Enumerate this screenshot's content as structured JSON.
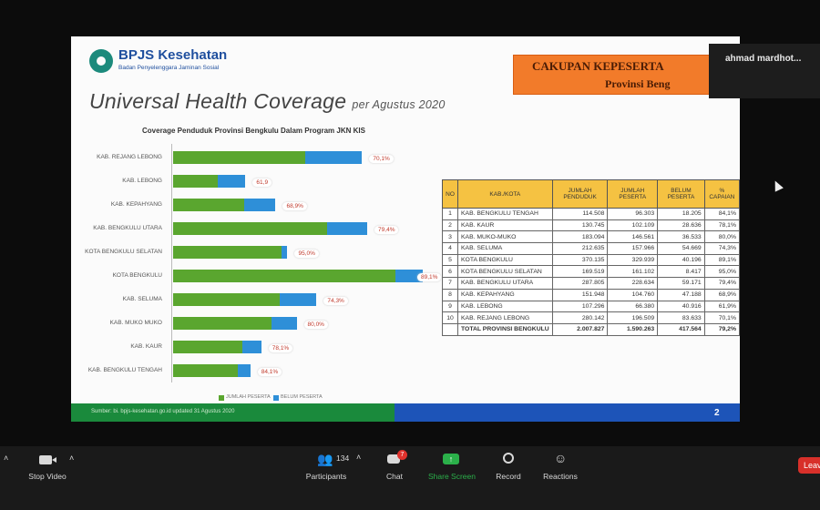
{
  "slide": {
    "logo_name": "BPJS Kesehatan",
    "logo_sub": "Badan Penyelenggara Jaminan Sosial",
    "title": "Universal Health Coverage",
    "title_sub": "per Agustus 2020",
    "chart_title": "Coverage Penduduk Provinsi Bengkulu  Dalam Program JKN KIS",
    "banner_title": "CAKUPAN KEPESERTA",
    "banner_sub": "Provinsi Beng",
    "footer_text": "Sumber: bi. bpjs-kesehatan.go.id updated 31 Agustus 2020",
    "page_number": "2"
  },
  "chart_data": {
    "type": "bar",
    "orientation": "horizontal",
    "title": "Coverage Penduduk Provinsi Bengkulu  Dalam Program JKN KIS",
    "categories": [
      "KAB. REJANG LEBONG",
      "KAB. LEBONG",
      "KAB. KEPAHYANG",
      "KAB. BENGKULU UTARA",
      "KOTA BENGKULU SELATAN",
      "KOTA BENGKULU",
      "KAB. SELUMA",
      "KAB. MUKO MUKO",
      "KAB. KAUR",
      "KAB. BENGKULU TENGAH"
    ],
    "labels": [
      "70,1%",
      "61,9",
      "68,9%",
      "79,4%",
      "95,0%",
      "89,1%",
      "74,3%",
      "80,0%",
      "78,1%",
      "84,1%"
    ],
    "series": [
      {
        "name": "JUMLAH PESERTA",
        "color": "#5aa62f",
        "values": [
          196509,
          66380,
          104760,
          228634,
          161102,
          329939,
          157966,
          146561,
          102109,
          96303
        ]
      },
      {
        "name": "BELUM PESERTA",
        "color": "#2e8fd8",
        "values": [
          83633,
          40916,
          47188,
          59171,
          8417,
          40196,
          54669,
          36533,
          28636,
          18205
        ]
      }
    ],
    "legend_position": "bottom-right"
  },
  "table": {
    "headers": [
      "NO",
      "KAB./KOTA",
      "JUMLAH PENDUDUK",
      "JUMLAH PESERTA",
      "BELUM PESERTA",
      "% CAPAIAN"
    ],
    "rows": [
      [
        "1",
        "KAB. BENGKULU TENGAH",
        "114.508",
        "96.303",
        "18.205",
        "84,1%"
      ],
      [
        "2",
        "KAB. KAUR",
        "130.745",
        "102.109",
        "28.636",
        "78,1%"
      ],
      [
        "3",
        "KAB. MUKO-MUKO",
        "183.094",
        "146.561",
        "36.533",
        "80,0%"
      ],
      [
        "4",
        "KAB. SELUMA",
        "212.635",
        "157.966",
        "54.669",
        "74,3%"
      ],
      [
        "5",
        "KOTA BENGKULU",
        "370.135",
        "329.939",
        "40.196",
        "89,1%"
      ],
      [
        "6",
        "KOTA BENGKULU SELATAN",
        "169.519",
        "161.102",
        "8.417",
        "95,0%"
      ],
      [
        "7",
        "KAB. BENGKULU UTARA",
        "287.805",
        "228.634",
        "59.171",
        "79,4%"
      ],
      [
        "8",
        "KAB. KEPAHYANG",
        "151.948",
        "104.760",
        "47.188",
        "68,9%"
      ],
      [
        "9",
        "KAB. LEBONG",
        "107.296",
        "66.380",
        "40.916",
        "61,9%"
      ],
      [
        "10",
        "KAB. REJANG LEBONG",
        "280.142",
        "196.509",
        "83.633",
        "70,1%"
      ]
    ],
    "total": [
      "",
      "TOTAL PROVINSI BENGKULU",
      "2.007.827",
      "1.590.263",
      "417.564",
      "79,2%"
    ]
  },
  "participant": {
    "name": "ahmad  mardhot..."
  },
  "toolbar": {
    "stop_video": "Stop Video",
    "participants": "Participants",
    "participants_count": "134",
    "chat": "Chat",
    "chat_badge": "7",
    "share_screen": "Share Screen",
    "record": "Record",
    "reactions": "Reactions",
    "leave": "Leav"
  },
  "colors": {
    "green": "#5aa62f",
    "blue": "#2e8fd8",
    "banner": "#f27b2a",
    "table_header": "#f5c242"
  }
}
